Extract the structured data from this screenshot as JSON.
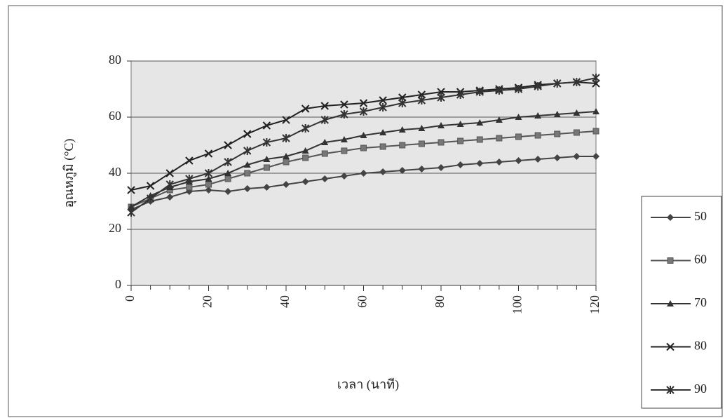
{
  "chart_data": {
    "type": "line",
    "xlabel": "เวลา (นาที)",
    "ylabel": "อุณหภูมิ (°C)",
    "x": [
      0,
      5,
      10,
      15,
      20,
      25,
      30,
      35,
      40,
      45,
      50,
      55,
      60,
      65,
      70,
      75,
      80,
      85,
      90,
      95,
      100,
      105,
      110,
      115,
      120
    ],
    "series": [
      {
        "name": "50",
        "color": "#444",
        "marker": "diamond",
        "values": [
          27,
          30,
          31.5,
          33.5,
          34,
          33.5,
          34.5,
          35,
          36,
          37,
          38,
          39,
          40,
          40.5,
          41,
          41.5,
          42,
          43,
          43.5,
          44,
          44.5,
          45,
          45.5,
          46,
          46
        ]
      },
      {
        "name": "60",
        "color": "#555",
        "marker": "square",
        "values": [
          28,
          31,
          34,
          35,
          36,
          38,
          40,
          42,
          44,
          45.5,
          47,
          48,
          49,
          49.5,
          50,
          50.5,
          51,
          51.5,
          52,
          52.5,
          53,
          53.5,
          54,
          54.5,
          55
        ]
      },
      {
        "name": "70",
        "color": "#333",
        "marker": "triangle",
        "values": [
          28,
          32,
          35,
          37,
          38,
          40,
          43,
          45,
          46,
          48,
          51,
          52,
          53.5,
          54.5,
          55.5,
          56,
          57,
          57.5,
          58,
          59,
          60,
          60.5,
          61,
          61.5,
          62
        ]
      },
      {
        "name": "80",
        "color": "#222",
        "marker": "x",
        "values": [
          34,
          35.5,
          40,
          44.5,
          47,
          50,
          54,
          57,
          59,
          63,
          64,
          64.5,
          65,
          66,
          67,
          68,
          69,
          69,
          69.5,
          70,
          70.5,
          71.5,
          72,
          72.5,
          72
        ]
      },
      {
        "name": "90",
        "color": "#333",
        "marker": "star",
        "values": [
          26,
          31,
          36,
          38,
          40,
          44,
          48,
          51,
          52.5,
          56,
          59,
          61,
          62,
          63.5,
          65,
          66,
          67,
          68,
          69,
          69.5,
          70,
          71,
          72,
          72.5,
          74
        ]
      }
    ],
    "xlim": [
      0,
      120
    ],
    "xticks": [
      0,
      20,
      40,
      60,
      80,
      100,
      120
    ],
    "ylim": [
      0,
      80
    ],
    "yticks": [
      0,
      20,
      40,
      60,
      80
    ],
    "grid": true,
    "legend": "right"
  }
}
